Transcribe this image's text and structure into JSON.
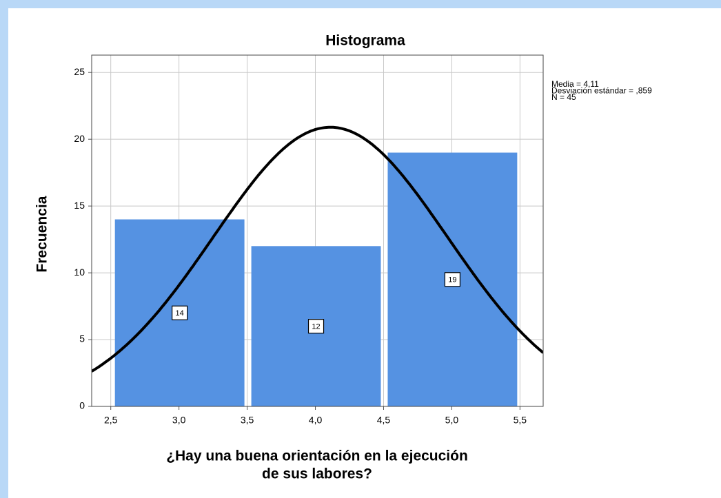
{
  "chart_data": {
    "type": "histogram",
    "title": "Histograma",
    "xlabel": [
      "¿Hay una buena orientación en la ejecución",
      "de sus labores?"
    ],
    "ylabel": "Frecuencia",
    "bins": [
      2.5,
      3.5,
      4.5,
      5.5
    ],
    "values": [
      14,
      12,
      19
    ],
    "color": "#5592e2",
    "xlim": [
      2.36,
      5.67
    ],
    "xticks": [
      {
        "value": 2.5,
        "label": "2,5"
      },
      {
        "value": 3.0,
        "label": "3,0"
      },
      {
        "value": 3.5,
        "label": "3,5"
      },
      {
        "value": 4.0,
        "label": "4,0"
      },
      {
        "value": 4.5,
        "label": "4,5"
      },
      {
        "value": 5.0,
        "label": "5,0"
      },
      {
        "value": 5.5,
        "label": "5,5"
      }
    ],
    "ylim": [
      0,
      26.3
    ],
    "yticks": [
      0,
      5,
      10,
      15,
      20,
      25
    ],
    "grid": true,
    "stats": [
      {
        "value": 4.11,
        "label": "Media = 4,11"
      },
      {
        "value": 0.859,
        "label": "Desviación estándar = ,859"
      },
      {
        "value": 45,
        "label": "N = 45"
      }
    ],
    "curve_color": "#000000"
  }
}
